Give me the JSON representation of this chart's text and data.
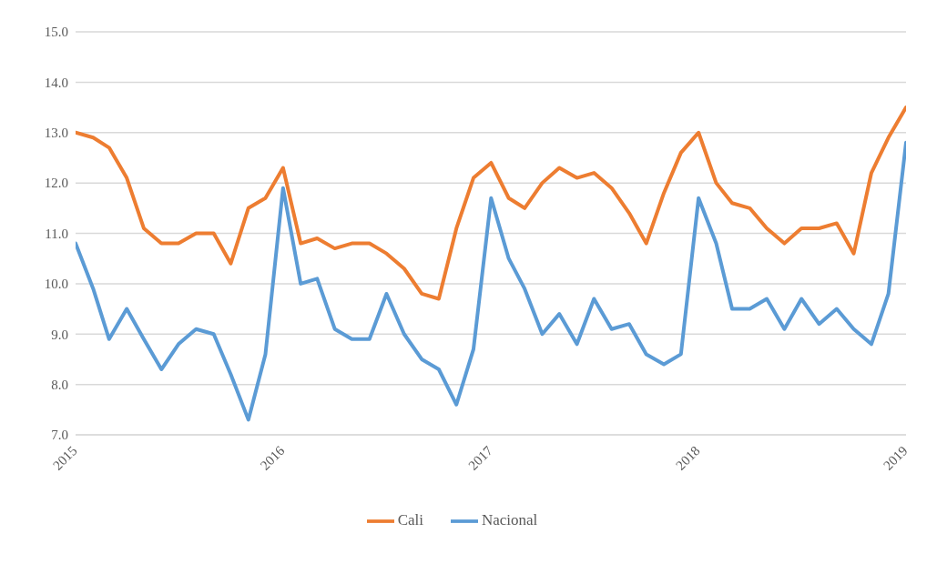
{
  "chart_data": {
    "type": "line",
    "x": [
      "2015-01",
      "2015-02",
      "2015-03",
      "2015-04",
      "2015-05",
      "2015-06",
      "2015-07",
      "2015-08",
      "2015-09",
      "2015-10",
      "2015-11",
      "2015-12",
      "2016-01",
      "2016-02",
      "2016-03",
      "2016-04",
      "2016-05",
      "2016-06",
      "2016-07",
      "2016-08",
      "2016-09",
      "2016-10",
      "2016-11",
      "2016-12",
      "2017-01",
      "2017-02",
      "2017-03",
      "2017-04",
      "2017-05",
      "2017-06",
      "2017-07",
      "2017-08",
      "2017-09",
      "2017-10",
      "2017-11",
      "2017-12",
      "2018-01",
      "2018-02",
      "2018-03",
      "2018-04",
      "2018-05",
      "2018-06",
      "2018-07",
      "2018-08",
      "2018-09",
      "2018-10",
      "2018-11",
      "2018-12",
      "2019-01"
    ],
    "series": [
      {
        "name": "Nacional",
        "color": "#5b9bd5",
        "values": [
          10.8,
          9.9,
          8.9,
          9.5,
          8.9,
          8.3,
          8.8,
          9.1,
          9.0,
          8.2,
          7.3,
          8.6,
          11.9,
          10.0,
          10.1,
          9.1,
          8.9,
          8.9,
          9.8,
          9.0,
          8.5,
          8.3,
          7.6,
          8.7,
          11.7,
          10.5,
          9.9,
          9.0,
          9.4,
          8.8,
          9.7,
          9.1,
          9.2,
          8.6,
          8.4,
          8.6,
          11.7,
          10.8,
          9.5,
          9.5,
          9.7,
          9.1,
          9.7,
          9.2,
          9.5,
          9.1,
          8.8,
          9.8,
          12.8
        ]
      },
      {
        "name": "Cali",
        "color": "#ed7d31",
        "values": [
          13.0,
          12.9,
          12.7,
          12.1,
          11.1,
          10.8,
          10.8,
          11.0,
          11.0,
          10.4,
          11.5,
          11.7,
          12.3,
          10.8,
          10.9,
          10.7,
          10.8,
          10.8,
          10.6,
          10.3,
          9.8,
          9.7,
          11.1,
          12.1,
          12.4,
          11.7,
          11.5,
          12.0,
          12.3,
          12.1,
          12.2,
          11.9,
          11.4,
          10.8,
          11.8,
          12.6,
          13.0,
          12.0,
          11.6,
          11.5,
          11.1,
          10.8,
          11.1,
          11.1,
          11.2,
          10.6,
          12.2,
          12.9,
          13.5
        ]
      }
    ],
    "xlim": [
      "2015",
      "2019"
    ],
    "xticks": [
      "2015",
      "2016",
      "2017",
      "2018",
      "2019"
    ],
    "ylim": [
      7,
      15
    ],
    "yticks": [
      {
        "value": 7,
        "label": "7.0"
      },
      {
        "value": 8,
        "label": "8.0"
      },
      {
        "value": 9,
        "label": "9.0"
      },
      {
        "value": 10,
        "label": "10.0"
      },
      {
        "value": 11,
        "label": "11.0"
      },
      {
        "value": 12,
        "label": "12.0"
      },
      {
        "value": 13,
        "label": "13.0"
      },
      {
        "value": 14,
        "label": "14.0"
      },
      {
        "value": 15,
        "label": "15.0"
      }
    ],
    "grid": "y",
    "legend": "bottom",
    "marker": "none",
    "line_style": "solid"
  }
}
